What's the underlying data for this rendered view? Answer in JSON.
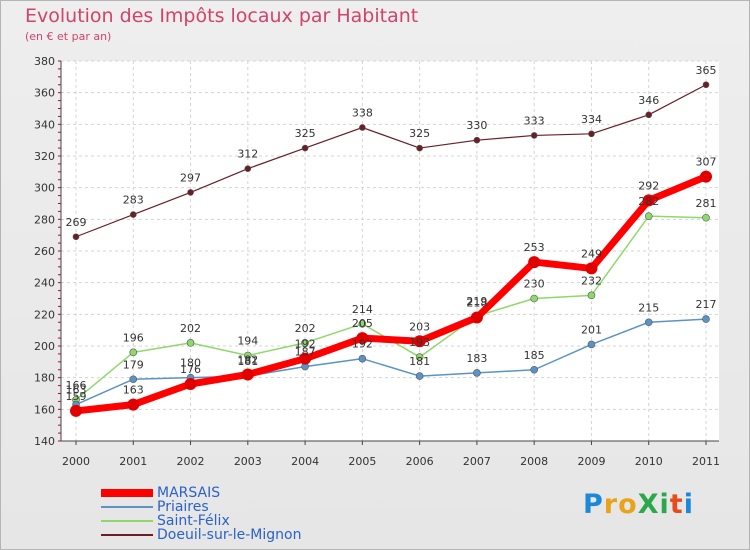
{
  "title": "Evolution des Impôts locaux par Habitant",
  "subtitle": "(en € et par an)",
  "logo": "ProXiti",
  "chart_data": {
    "type": "line",
    "x": [
      "2000",
      "2001",
      "2002",
      "2003",
      "2004",
      "2005",
      "2006",
      "2007",
      "2008",
      "2009",
      "2010",
      "2011"
    ],
    "ylim": [
      140,
      380
    ],
    "yticks": [
      140,
      160,
      180,
      200,
      220,
      240,
      260,
      280,
      300,
      320,
      340,
      360,
      380
    ],
    "grid": true,
    "legend_position": "bottom-left",
    "series": [
      {
        "name": "Doeuil-sur-le-Mignon",
        "color": "#6b1e26",
        "values": [
          269,
          283,
          297,
          312,
          325,
          338,
          325,
          330,
          333,
          334,
          346,
          365
        ]
      },
      {
        "name": "Saint-Félix",
        "color": "#8fd86b",
        "values": [
          166,
          196,
          202,
          194,
          202,
          214,
          193,
          219,
          230,
          232,
          282,
          281
        ]
      },
      {
        "name": "Priaires",
        "color": "#5b93c7",
        "values": [
          163,
          179,
          180,
          181,
          187,
          192,
          181,
          183,
          185,
          201,
          215,
          217
        ]
      },
      {
        "name": "MARSAIS",
        "color": "#ff0000",
        "values": [
          159,
          163,
          176,
          182,
          192,
          205,
          203,
          218,
          253,
          249,
          292,
          307
        ]
      }
    ],
    "legend": [
      "MARSAIS",
      "Priaires",
      "Saint-Félix",
      "Doeuil-sur-le-Mignon"
    ]
  }
}
